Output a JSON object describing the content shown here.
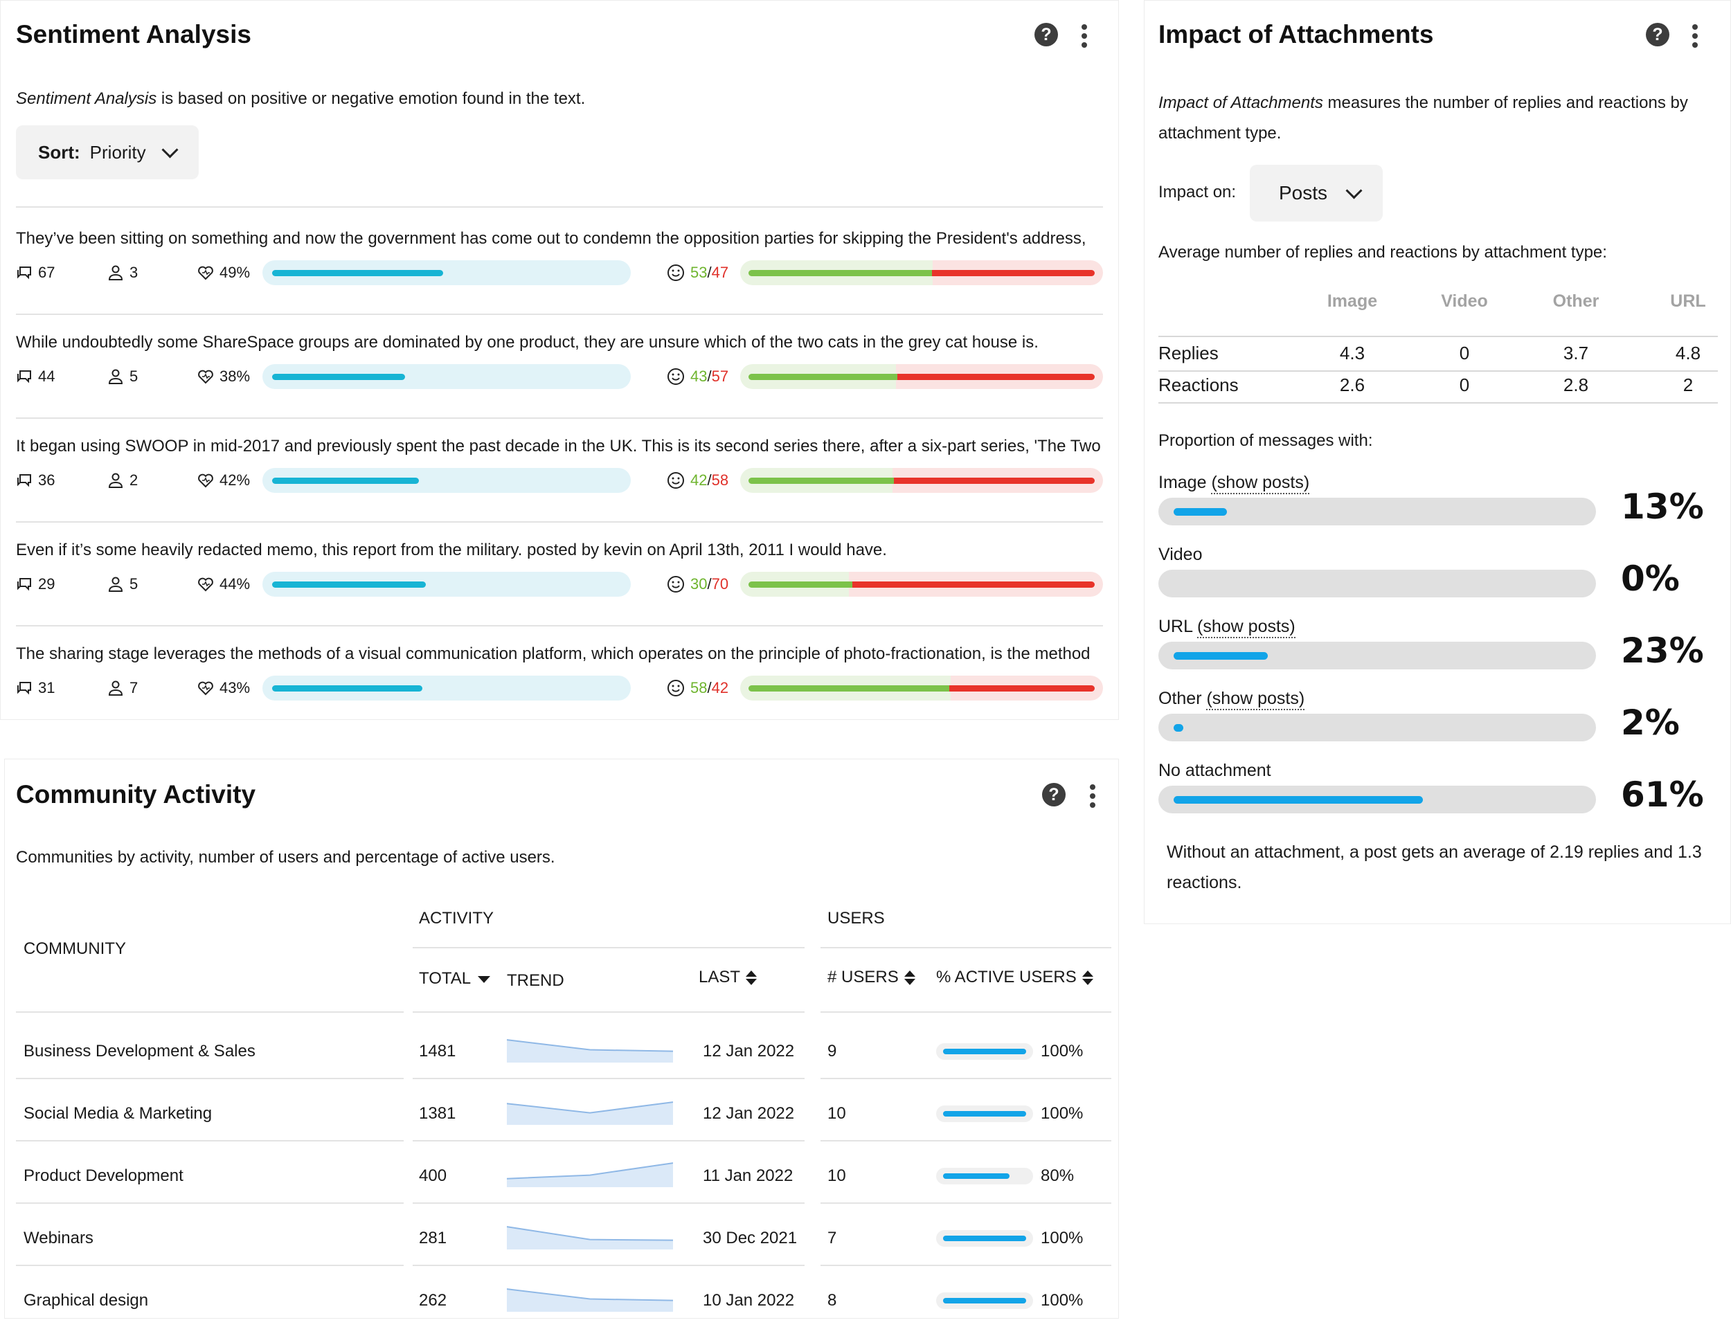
{
  "sentiment": {
    "title": "Sentiment Analysis",
    "desc_em": "Sentiment Analysis",
    "desc_rest": " is based on positive or negative emotion found in the text.",
    "sort_label": "Sort:",
    "sort_value": "Priority",
    "items": [
      {
        "text": "They’ve been sitting on something and now the government has come out to condemn the opposition parties for skipping the President's address,",
        "comments": "67",
        "users": "3",
        "engagement": "49%",
        "engagement_value": 49,
        "pos": "53",
        "neg": "47",
        "pos_value": 53
      },
      {
        "text": "While undoubtedly some ShareSpace groups are dominated by one product, they are unsure which of the two cats in the grey cat house is.",
        "comments": "44",
        "users": "5",
        "engagement": "38%",
        "engagement_value": 38,
        "pos": "43",
        "neg": "57",
        "pos_value": 43
      },
      {
        "text": "It began using SWOOP in mid-2017 and previously spent the past decade in the UK. This is its second series there, after a six-part series, 'The Two",
        "comments": "36",
        "users": "2",
        "engagement": "42%",
        "engagement_value": 42,
        "pos": "42",
        "neg": "58",
        "pos_value": 42
      },
      {
        "text": "Even if it’s some heavily redacted memo, this report from the military. posted by kevin on April 13th, 2011 I would have.",
        "comments": "29",
        "users": "5",
        "engagement": "44%",
        "engagement_value": 44,
        "pos": "30",
        "neg": "70",
        "pos_value": 30
      },
      {
        "text": "The sharing stage leverages the methods of a visual communication platform, which operates on the principle of photo-fractionation, is the method",
        "comments": "31",
        "users": "7",
        "engagement": "43%",
        "engagement_value": 43,
        "pos": "58",
        "neg": "42",
        "pos_value": 58
      }
    ]
  },
  "community": {
    "title": "Community Activity",
    "desc": "Communities by activity, number of users and percentage of active users.",
    "headers": {
      "community": "COMMUNITY",
      "activity": "ACTIVITY",
      "users_group": "USERS",
      "total": "TOTAL",
      "trend": "TREND",
      "last": "LAST",
      "num_users": "# USERS",
      "pct_active": "% ACTIVE USERS"
    },
    "rows": [
      {
        "name": "Business Development & Sales",
        "total": "1481",
        "last": "12 Jan 2022",
        "users": "9",
        "active": "100%",
        "active_value": 100,
        "trend": [
          3,
          1.6,
          1.4
        ]
      },
      {
        "name": "Social Media & Marketing",
        "total": "1381",
        "last": "12 Jan 2022",
        "users": "10",
        "active": "100%",
        "active_value": 100,
        "trend": [
          2.8,
          1.5,
          3
        ]
      },
      {
        "name": "Product Development",
        "total": "400",
        "last": "11 Jan 2022",
        "users": "10",
        "active": "80%",
        "active_value": 80,
        "trend": [
          1,
          1.5,
          3.2
        ]
      },
      {
        "name": "Webinars",
        "total": "281",
        "last": "30 Dec 2021",
        "users": "7",
        "active": "100%",
        "active_value": 100,
        "trend": [
          3,
          1.2,
          1.1
        ]
      },
      {
        "name": "Graphical design",
        "total": "262",
        "last": "10 Jan 2022",
        "users": "8",
        "active": "100%",
        "active_value": 100,
        "trend": [
          3,
          1.6,
          1.4
        ]
      }
    ]
  },
  "impact": {
    "title": "Impact of Attachments",
    "desc_em": "Impact of Attachments",
    "desc_rest": " measures the number of replies and reactions by attachment type.",
    "impact_on_label": "Impact on:",
    "impact_on_value": "Posts",
    "avg_label": "Average number of replies and reactions by attachment type:",
    "columns": [
      "Image",
      "Video",
      "Other",
      "URL"
    ],
    "rows": [
      {
        "label": "Replies",
        "values": [
          "4.3",
          "0",
          "3.7",
          "4.8"
        ]
      },
      {
        "label": "Reactions",
        "values": [
          "2.6",
          "0",
          "2.8",
          "2"
        ]
      }
    ],
    "proportion_label": "Proportion of messages with:",
    "show_posts": "(show posts)",
    "proportions": [
      {
        "label": "Image",
        "pct": "13%",
        "value": 13,
        "link": true
      },
      {
        "label": "Video",
        "pct": "0%",
        "value": 0,
        "link": false
      },
      {
        "label": "URL",
        "pct": "23%",
        "value": 23,
        "link": true
      },
      {
        "label": "Other",
        "pct": "2%",
        "value": 2,
        "link": true
      },
      {
        "label": "No attachment",
        "pct": "61%",
        "value": 61,
        "link": false
      }
    ],
    "footer": "Without an attachment, a post gets an average of 2.19 replies and 1.3 reactions."
  }
}
